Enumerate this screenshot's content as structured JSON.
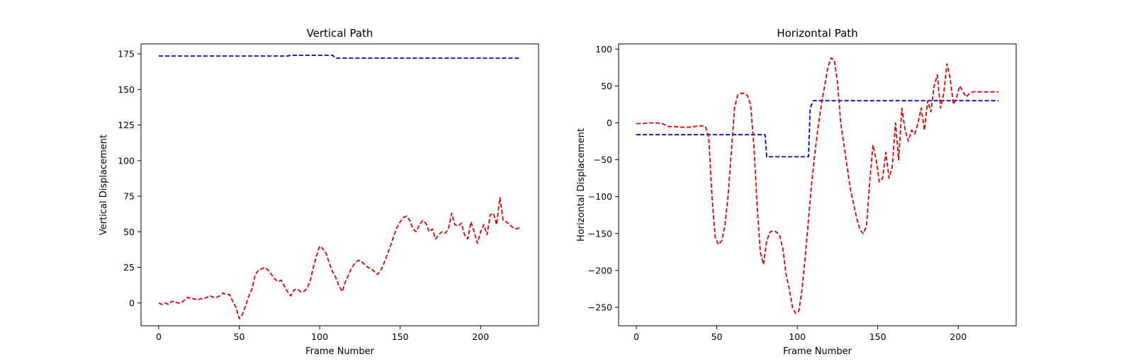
{
  "chart_data": [
    {
      "type": "line",
      "title": "Vertical Path",
      "xlabel": "Frame Number",
      "ylabel": "Vertical Displacement",
      "xlim": [
        -11,
        236
      ],
      "ylim": [
        -16,
        182
      ],
      "xticks": [
        0,
        50,
        100,
        150,
        200
      ],
      "yticks": [
        0,
        25,
        50,
        75,
        100,
        125,
        150,
        175
      ],
      "grid": false,
      "series": [
        {
          "color": "#0000cc",
          "style": "dashed",
          "x": [
            0,
            80,
            82,
            108,
            110,
            225
          ],
          "y": [
            173.5,
            173.5,
            174,
            174,
            172,
            172
          ]
        },
        {
          "color": "#dd0000",
          "style": "dashed",
          "x": [
            0,
            2,
            4,
            6,
            8,
            10,
            12,
            14,
            16,
            18,
            20,
            22,
            24,
            26,
            28,
            30,
            32,
            34,
            36,
            38,
            40,
            42,
            44,
            46,
            48,
            50,
            52,
            54,
            56,
            58,
            60,
            62,
            64,
            66,
            68,
            70,
            72,
            74,
            76,
            78,
            80,
            82,
            84,
            86,
            88,
            90,
            92,
            94,
            96,
            98,
            100,
            102,
            104,
            106,
            108,
            110,
            112,
            114,
            116,
            118,
            120,
            122,
            124,
            126,
            128,
            130,
            132,
            134,
            136,
            138,
            140,
            142,
            144,
            146,
            148,
            150,
            152,
            154,
            156,
            158,
            160,
            162,
            164,
            166,
            168,
            170,
            172,
            174,
            176,
            178,
            180,
            182,
            184,
            186,
            188,
            190,
            192,
            194,
            196,
            198,
            200,
            202,
            204,
            206,
            208,
            210,
            211,
            212,
            214,
            216,
            218,
            220,
            222,
            225
          ],
          "y": [
            0,
            -1,
            0,
            -1,
            1,
            1,
            0,
            0,
            2,
            4,
            3,
            3,
            2,
            3,
            3,
            4,
            5,
            4,
            4,
            5,
            7,
            6,
            6,
            1,
            -3,
            -11,
            -8,
            -2,
            5,
            10,
            20,
            23,
            24,
            25,
            23,
            20,
            17,
            15,
            16,
            12,
            8,
            5,
            9,
            10,
            8,
            8,
            10,
            15,
            25,
            33,
            40,
            38,
            35,
            28,
            22,
            18,
            12,
            8,
            15,
            20,
            25,
            28,
            30,
            29,
            27,
            25,
            24,
            22,
            20,
            23,
            28,
            34,
            40,
            47,
            53,
            57,
            60,
            61,
            58,
            52,
            50,
            55,
            58,
            56,
            50,
            52,
            45,
            48,
            50,
            49,
            52,
            63,
            55,
            54,
            56,
            48,
            45,
            57,
            50,
            42,
            50,
            55,
            48,
            62,
            63,
            55,
            65,
            74,
            58,
            57,
            55,
            53,
            52,
            53
          ]
        }
      ]
    },
    {
      "type": "line",
      "title": "Horizontal Path",
      "xlabel": "Frame Number",
      "ylabel": "Horizontal Displacement",
      "xlim": [
        -11,
        236
      ],
      "ylim": [
        -275,
        107
      ],
      "xticks": [
        0,
        50,
        100,
        150,
        200
      ],
      "yticks": [
        100,
        50,
        0,
        -50,
        -100,
        -150,
        -200,
        -250
      ],
      "grid": false,
      "series": [
        {
          "color": "#0000cc",
          "style": "dashed",
          "x": [
            0,
            80,
            81,
            107,
            108,
            110,
            225
          ],
          "y": [
            -16,
            -16,
            -46,
            -46,
            20,
            30,
            30
          ]
        },
        {
          "color": "#dd0000",
          "style": "dashed",
          "x": [
            0,
            4,
            8,
            12,
            16,
            20,
            24,
            28,
            32,
            36,
            40,
            43,
            45,
            47,
            49,
            51,
            53,
            55,
            57,
            59,
            61,
            63,
            65,
            67,
            69,
            71,
            73,
            75,
            77,
            79,
            81,
            83,
            85,
            87,
            89,
            91,
            93,
            95,
            97,
            99,
            101,
            103,
            105,
            107,
            109,
            111,
            113,
            115,
            117,
            119,
            121,
            123,
            125,
            127,
            129,
            131,
            133,
            135,
            137,
            139,
            141,
            143,
            145,
            147,
            149,
            151,
            153,
            155,
            157,
            159,
            161,
            163,
            165,
            167,
            169,
            171,
            173,
            175,
            177,
            179,
            181,
            183,
            185,
            187,
            189,
            191,
            193,
            195,
            197,
            199,
            201,
            203,
            205,
            207,
            209,
            211,
            213,
            215,
            217,
            219,
            221,
            225
          ],
          "y": [
            -1,
            -1,
            0,
            0,
            -1,
            -5,
            -5,
            -6,
            -6,
            -5,
            -4,
            -5,
            -20,
            -100,
            -155,
            -165,
            -160,
            -140,
            -100,
            -40,
            20,
            38,
            40,
            40,
            37,
            25,
            -30,
            -110,
            -175,
            -192,
            -160,
            -148,
            -146,
            -148,
            -152,
            -170,
            -205,
            -225,
            -250,
            -258,
            -255,
            -225,
            -180,
            -130,
            -80,
            -40,
            -5,
            25,
            50,
            75,
            88,
            85,
            55,
            0,
            -30,
            -60,
            -90,
            -110,
            -130,
            -145,
            -150,
            -140,
            -80,
            -30,
            -50,
            -80,
            -75,
            -40,
            -75,
            -60,
            0,
            -50,
            20,
            -10,
            -25,
            -10,
            -15,
            0,
            20,
            -10,
            30,
            15,
            50,
            65,
            20,
            40,
            80,
            60,
            25,
            35,
            50,
            42,
            35,
            40,
            42,
            42,
            42,
            42,
            42,
            42,
            42,
            42
          ]
        }
      ]
    }
  ]
}
